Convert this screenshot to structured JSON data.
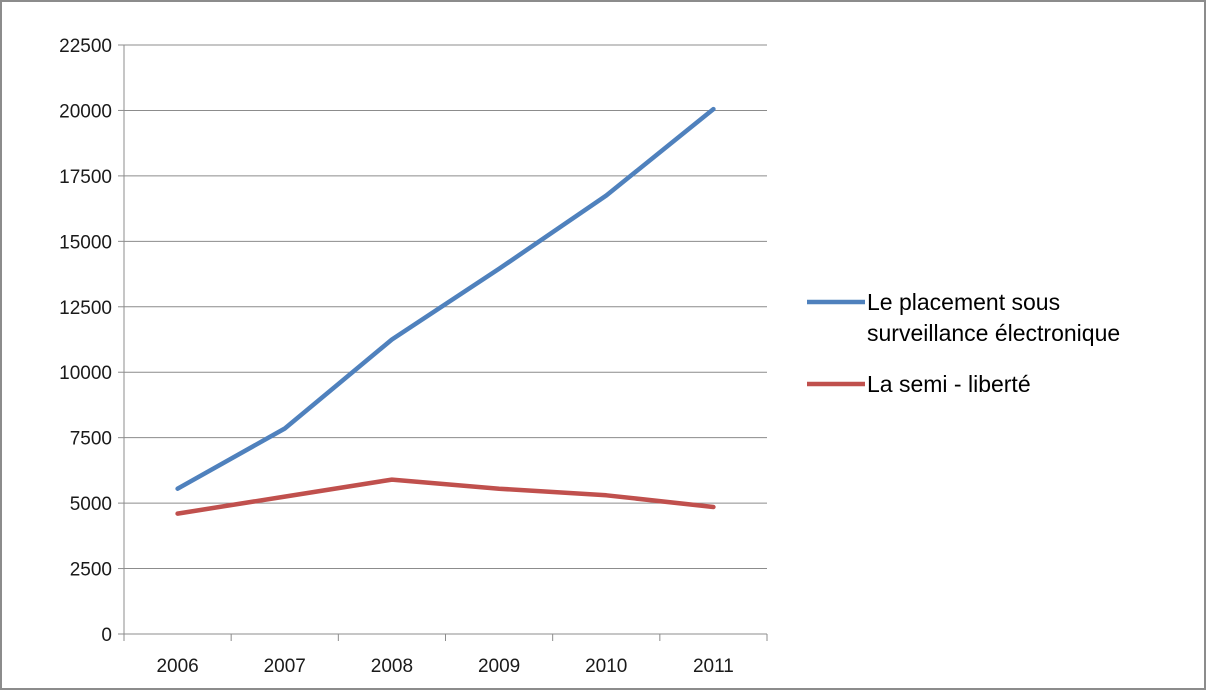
{
  "chart_data": {
    "type": "line",
    "title": "",
    "xlabel": "",
    "ylabel": "",
    "categories": [
      "2006",
      "2007",
      "2008",
      "2009",
      "2010",
      "2011"
    ],
    "ylim": [
      0,
      22500
    ],
    "yticks": [
      0,
      2500,
      5000,
      7500,
      10000,
      12500,
      15000,
      17500,
      20000,
      22500
    ],
    "grid": "horizontal",
    "legend_position": "right",
    "series": [
      {
        "name": "Le placement sous surveillance électronique",
        "name_lines": [
          "Le placement sous",
          "surveillance électronique"
        ],
        "color": "#4f81bd",
        "values": [
          5550,
          7850,
          11250,
          13950,
          16750,
          20050
        ]
      },
      {
        "name": "La semi - liberté",
        "name_lines": [
          "La semi - liberté"
        ],
        "color": "#c0504d",
        "values": [
          4600,
          5250,
          5900,
          5550,
          5300,
          4850
        ]
      }
    ]
  }
}
